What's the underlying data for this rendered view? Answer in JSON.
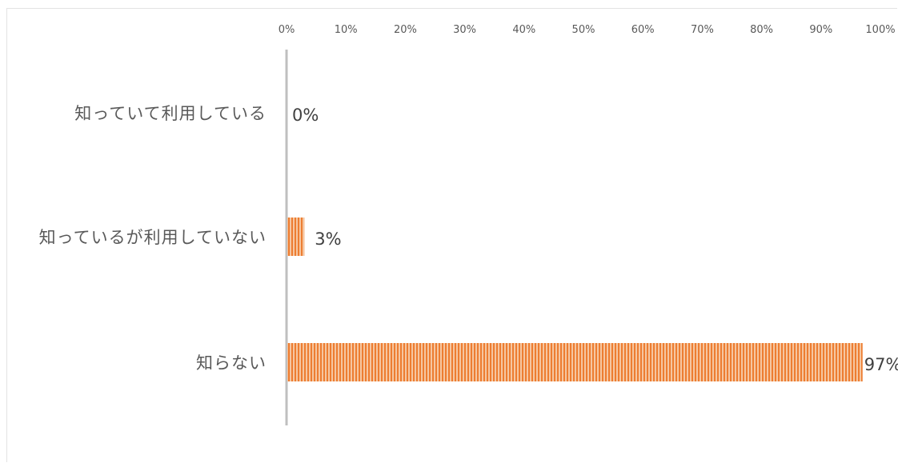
{
  "chart_data": {
    "type": "bar",
    "orientation": "horizontal",
    "categories": [
      "知っていて利用している",
      "知っているが利用していない",
      "知らない"
    ],
    "values": [
      0,
      3,
      97
    ],
    "data_labels": [
      "0%",
      "3%",
      "97%"
    ],
    "xlim": [
      0,
      100
    ],
    "x_ticks": [
      "0%",
      "10%",
      "20%",
      "30%",
      "40%",
      "50%",
      "60%",
      "70%",
      "80%",
      "90%",
      "100%"
    ],
    "x_axis_position": "top",
    "grid": false,
    "legend": "none",
    "bar_color": "#f4b183",
    "bar_stripe_color": "#ed7d31",
    "axis_color": "#bfbfbf",
    "text_color": "#595959"
  }
}
